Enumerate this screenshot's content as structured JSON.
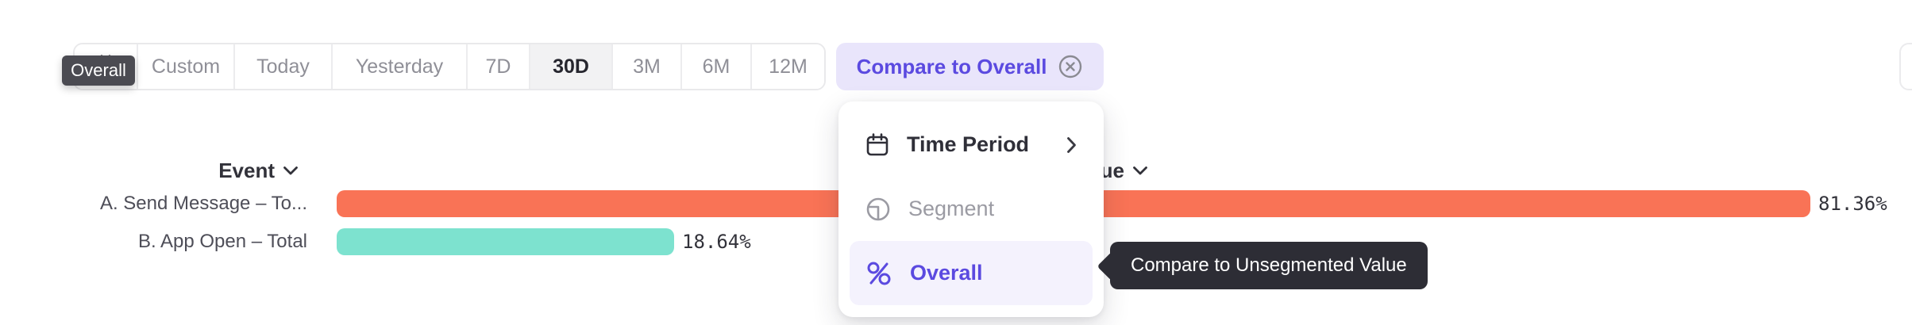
{
  "toolbar": {
    "segments": [
      {
        "label": "",
        "icon": "calendar-icon"
      },
      {
        "label": "Custom"
      },
      {
        "label": "Today"
      },
      {
        "label": "Yesterday"
      },
      {
        "label": "7D"
      },
      {
        "label": "30D",
        "selected": true
      },
      {
        "label": "3M"
      },
      {
        "label": "6M"
      },
      {
        "label": "12M"
      }
    ],
    "compare_button": {
      "label": "Compare to Overall",
      "icon": "close-circle-icon"
    }
  },
  "tooltips": {
    "date_segment_tooltip": "Overall",
    "overall_option_tooltip": "Compare to Unsegmented Value"
  },
  "menu": {
    "items": [
      {
        "label": "Time Period",
        "icon": "calendar-icon",
        "trailing_icon": "chevron-right-icon",
        "state": "default"
      },
      {
        "label": "Segment",
        "icon": "segment-circle-icon",
        "state": "disabled"
      },
      {
        "label": "Overall",
        "icon": "percent-icon",
        "state": "selected"
      }
    ]
  },
  "chart": {
    "event_header": "Event",
    "value_header": "Value"
  },
  "chart_data": {
    "type": "bar",
    "orientation": "horizontal",
    "title": "",
    "xlabel": "",
    "ylabel": "",
    "categories": [
      "A. Send Message – To...",
      "B. App Open – Total"
    ],
    "values": [
      81.36,
      18.64
    ],
    "value_labels": [
      "81.36%",
      "18.64%"
    ],
    "colors": [
      "#F97356",
      "#7DE2CF"
    ],
    "xlim": [
      0,
      100
    ],
    "grid": false,
    "legend": false
  },
  "colors": {
    "accent_purple": "#5B4AE0",
    "accent_purple_bg": "#E9E5FB",
    "selected_row_bg": "#F4F2FD",
    "bar_orange": "#F97356",
    "bar_teal": "#7DE2CF",
    "tooltip_dark": "#2D2D35",
    "tooltip_gray": "#4B4B52"
  }
}
